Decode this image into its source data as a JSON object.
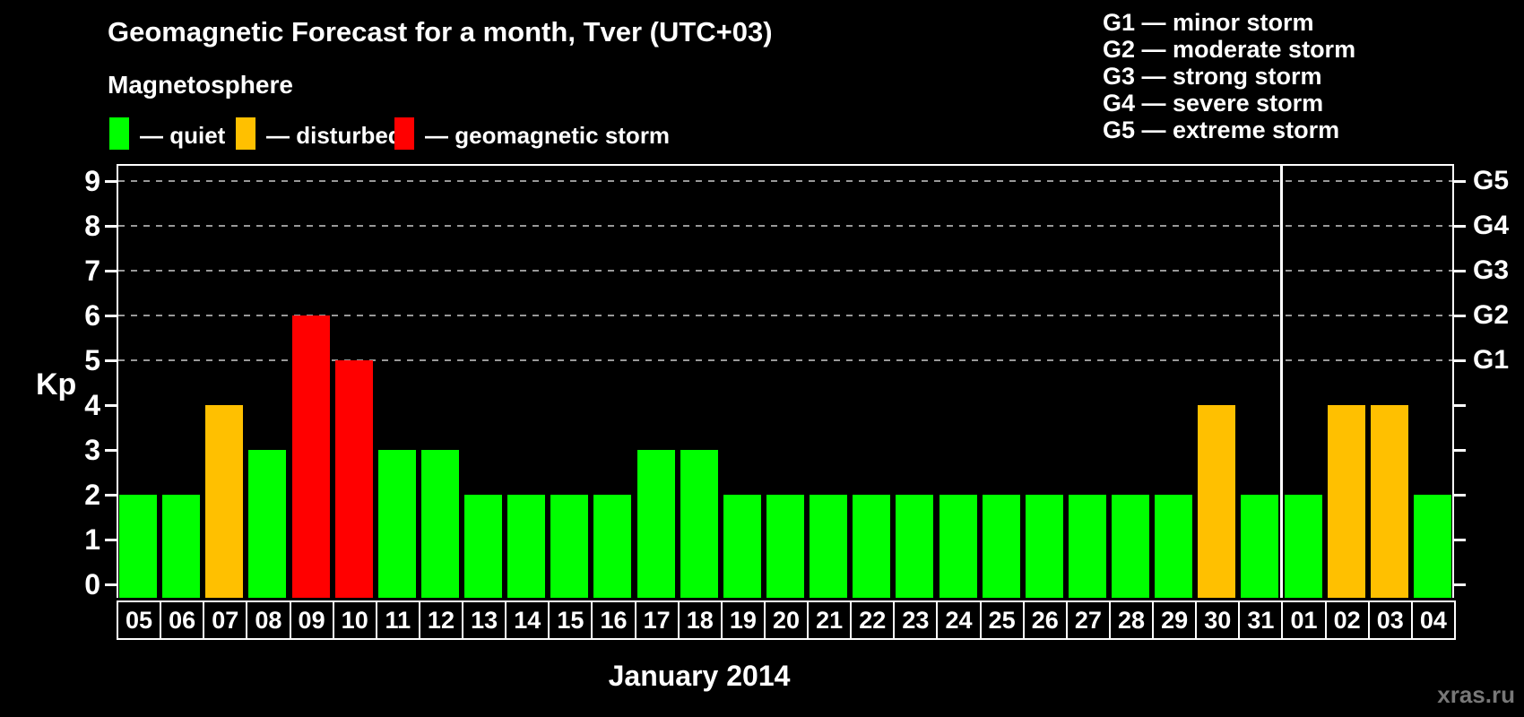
{
  "header": {
    "title": "Geomagnetic Forecast for a month, Tver (UTC+03)",
    "subtitle": "Magnetosphere"
  },
  "magnetosphere_legend": [
    {
      "status": "quiet",
      "label": "— quiet"
    },
    {
      "status": "disturbed",
      "label": "— disturbed"
    },
    {
      "status": "storm",
      "label": "— geomagnetic storm"
    }
  ],
  "storm_scale_legend": [
    "G1 — minor storm",
    "G2 — moderate storm",
    "G3 — strong storm",
    "G4 — severe storm",
    "G5 — extreme storm"
  ],
  "chart_data": {
    "type": "bar",
    "title": "Geomagnetic Forecast for a month, Tver (UTC+03)",
    "ylabel": "Kp",
    "xlabel": "January 2014",
    "ylim": [
      -0.3,
      9.4
    ],
    "y_ticks": [
      0,
      1,
      2,
      3,
      4,
      5,
      6,
      7,
      8,
      9
    ],
    "grid_dashed_at_kp": [
      5,
      6,
      7,
      8,
      9
    ],
    "right_axis_labels": [
      {
        "label": "G1",
        "kp": 5
      },
      {
        "label": "G2",
        "kp": 6
      },
      {
        "label": "G3",
        "kp": 7
      },
      {
        "label": "G4",
        "kp": 8
      },
      {
        "label": "G5",
        "kp": 9
      }
    ],
    "month_separator_after_index": 26,
    "categories": [
      "05",
      "06",
      "07",
      "08",
      "09",
      "10",
      "11",
      "12",
      "13",
      "14",
      "15",
      "16",
      "17",
      "18",
      "19",
      "20",
      "21",
      "22",
      "23",
      "24",
      "25",
      "26",
      "27",
      "28",
      "29",
      "30",
      "31",
      "01",
      "02",
      "03",
      "04"
    ],
    "values": [
      2,
      2,
      4,
      3,
      6,
      5,
      3,
      3,
      2,
      2,
      2,
      2,
      3,
      3,
      2,
      2,
      2,
      2,
      2,
      2,
      2,
      2,
      2,
      2,
      2,
      4,
      2,
      2,
      4,
      4,
      2
    ],
    "statuses": [
      "quiet",
      "quiet",
      "disturbed",
      "quiet",
      "storm",
      "storm",
      "quiet",
      "quiet",
      "quiet",
      "quiet",
      "quiet",
      "quiet",
      "quiet",
      "quiet",
      "quiet",
      "quiet",
      "quiet",
      "quiet",
      "quiet",
      "quiet",
      "quiet",
      "quiet",
      "quiet",
      "quiet",
      "quiet",
      "disturbed",
      "quiet",
      "quiet",
      "disturbed",
      "disturbed",
      "quiet"
    ]
  },
  "watermark": "xras.ru",
  "colors": {
    "background": "#000000",
    "quiet": "#00ff00",
    "disturbed": "#ffc000",
    "storm": "#ff0000",
    "axis": "#ffffff",
    "grid": "#999999",
    "watermark": "#787878"
  }
}
